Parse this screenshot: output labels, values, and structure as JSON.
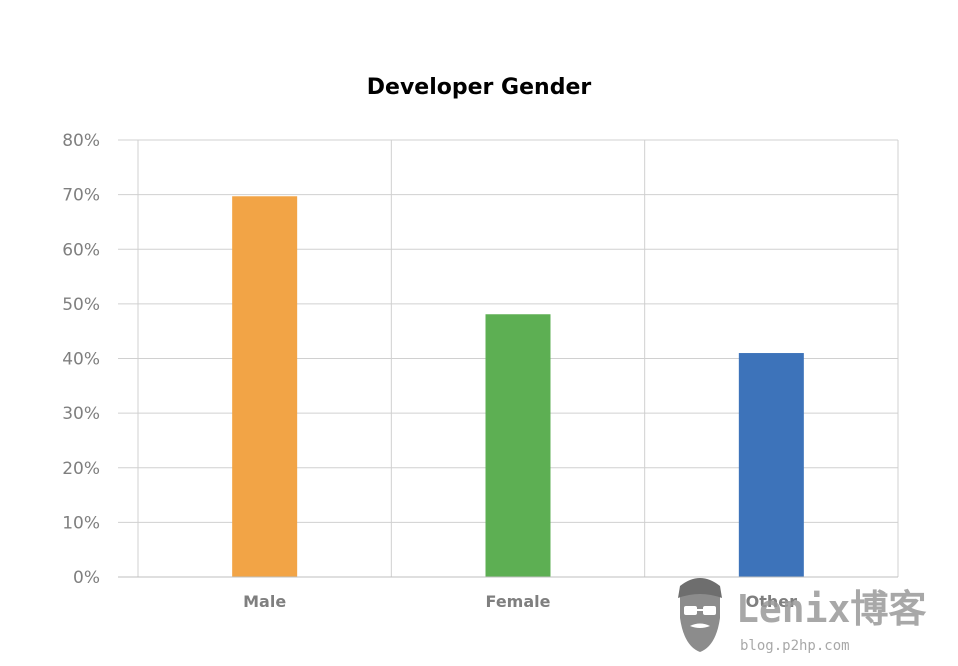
{
  "chart_data": {
    "type": "bar",
    "title": "Developer Gender",
    "xlabel": "",
    "ylabel": "",
    "categories": [
      "Male",
      "Female",
      "Other"
    ],
    "series": [
      {
        "values": [
          69.7,
          48.1,
          41.0
        ],
        "colors": [
          "#f2a446",
          "#5daf53",
          "#3d73ba"
        ]
      }
    ],
    "ylim": [
      0,
      80
    ],
    "y_ticks": [
      "0%",
      "10%",
      "20%",
      "30%",
      "40%",
      "50%",
      "60%",
      "70%",
      "80%"
    ],
    "y_tick_values": [
      0,
      10,
      20,
      30,
      40,
      50,
      60,
      70,
      80
    ],
    "grid": true,
    "legend": "none"
  },
  "watermark": {
    "brand": "Lenix博客",
    "url": "blog.p2hp.com",
    "icon": "bearded-face-icon"
  }
}
